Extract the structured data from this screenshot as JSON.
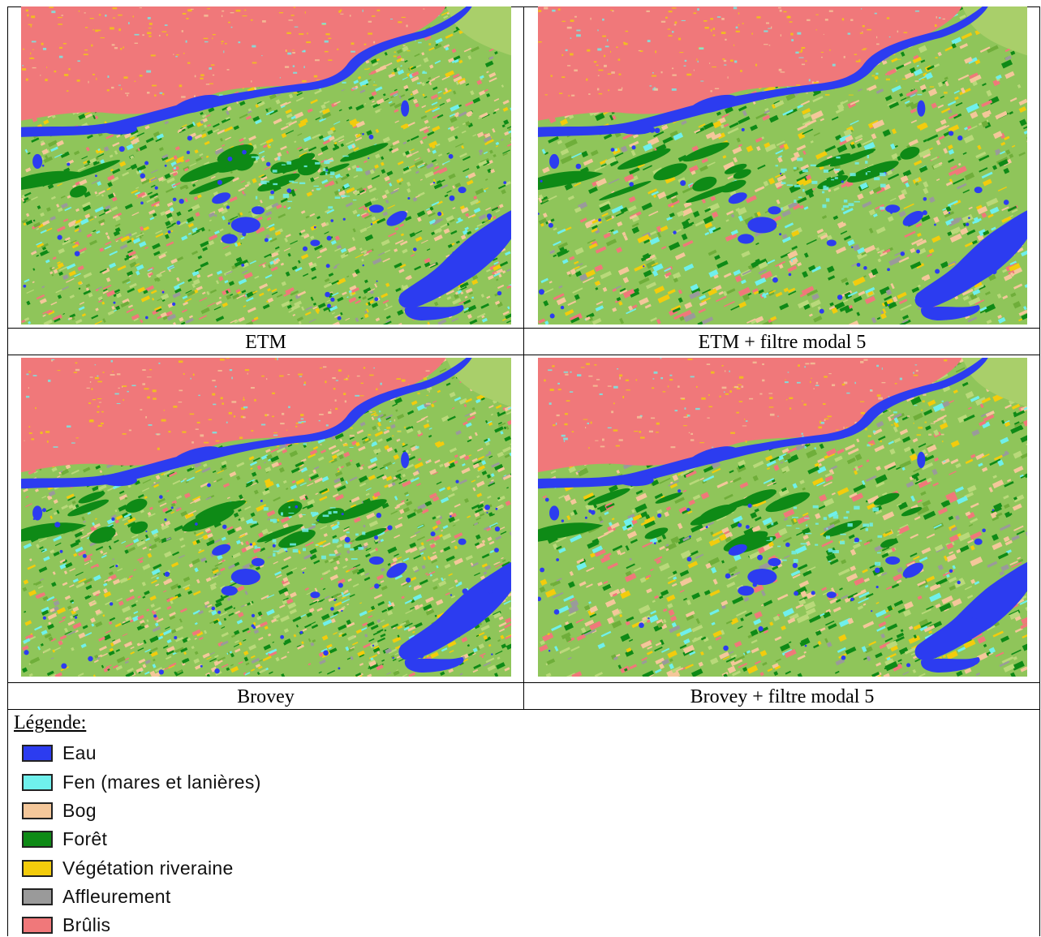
{
  "panels": [
    {
      "caption": "ETM",
      "variant": "etm",
      "filtered": false
    },
    {
      "caption": "ETM + filtre modal 5",
      "variant": "etm",
      "filtered": true
    },
    {
      "caption": "Brovey",
      "variant": "brovey",
      "filtered": false
    },
    {
      "caption": "Brovey + filtre modal 5",
      "variant": "brovey",
      "filtered": true
    }
  ],
  "legend": {
    "title": "Légende:",
    "items": [
      {
        "label": "Eau",
        "color": "#2c3cf0"
      },
      {
        "label": "Fen (mares et lanières)",
        "color": "#6ff0ec"
      },
      {
        "label": "Bog",
        "color": "#f4c79a"
      },
      {
        "label": "Forêt",
        "color": "#0e8a16"
      },
      {
        "label": "Végétation riveraine",
        "color": "#f3cc0c"
      },
      {
        "label": "Affleurement",
        "color": "#9a9a9a"
      },
      {
        "label": "Brûlis",
        "color": "#f0787a"
      }
    ]
  },
  "map_colors": {
    "background": "#8fc55a",
    "water": "#2c3cf0",
    "fen": "#6ff0ec",
    "bog": "#f4c79a",
    "forest": "#0e8a16",
    "riparian": "#f3cc0c",
    "outcrop": "#9a9a9a",
    "burn": "#f0787a"
  }
}
